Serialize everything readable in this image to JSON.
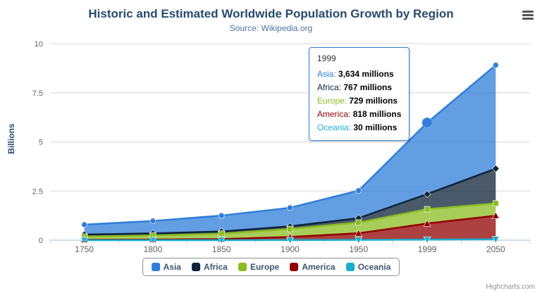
{
  "chart_data": {
    "type": "area",
    "title": "Historic and Estimated Worldwide Population Growth by Region",
    "subtitle": "Source: Wikipedia.org",
    "ylabel": "Billions",
    "xlabel": "",
    "categories": [
      "1750",
      "1800",
      "1850",
      "1900",
      "1950",
      "1999",
      "2050"
    ],
    "yticks": [
      0,
      2.5,
      5,
      7.5,
      10
    ],
    "ylim": [
      0,
      10
    ],
    "unit": "millions",
    "stacking": "normal",
    "legend_position": "bottom",
    "grid": true,
    "series": [
      {
        "name": "Asia",
        "color": "#2f7ed8",
        "marker": "circle",
        "values": [
          502,
          635,
          809,
          947,
          1402,
          3634,
          5268
        ]
      },
      {
        "name": "Africa",
        "color": "#0d233a",
        "marker": "diamond",
        "values": [
          106,
          107,
          111,
          133,
          221,
          767,
          1766
        ]
      },
      {
        "name": "Europe",
        "color": "#8bbc21",
        "marker": "square",
        "values": [
          163,
          203,
          276,
          408,
          547,
          729,
          628
        ]
      },
      {
        "name": "America",
        "color": "#910000",
        "marker": "triangle",
        "values": [
          18,
          31,
          54,
          156,
          339,
          818,
          1201
        ]
      },
      {
        "name": "Oceania",
        "color": "#1aadce",
        "marker": "triangle-down",
        "values": [
          2,
          2,
          2,
          6,
          13,
          30,
          46
        ]
      }
    ],
    "hover_point": {
      "series": "Asia",
      "category": "1999"
    },
    "tooltip": {
      "header": "1999",
      "rows": [
        {
          "label": "Asia",
          "value": "3,634 millions"
        },
        {
          "label": "Africa",
          "value": "767 millions"
        },
        {
          "label": "Europe",
          "value": "729 millions"
        },
        {
          "label": "America",
          "value": "818 millions"
        },
        {
          "label": "Oceania",
          "value": "30 millions"
        }
      ]
    },
    "legend": [
      "Asia",
      "Africa",
      "Europe",
      "America",
      "Oceania"
    ],
    "credits": "Highcharts.com"
  }
}
